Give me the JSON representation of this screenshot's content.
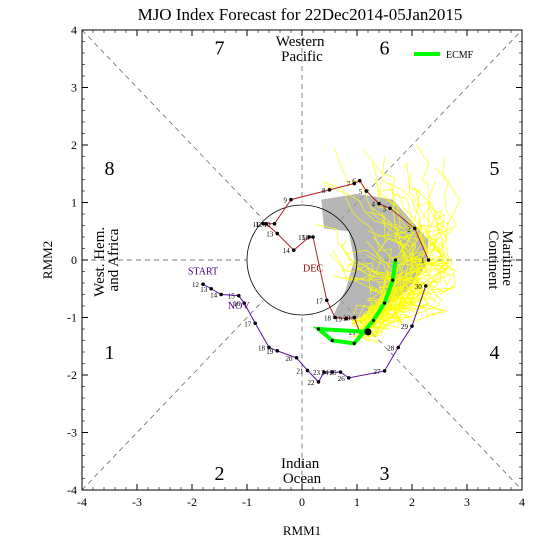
{
  "chart_data": {
    "type": "scatter",
    "title": "MJO Index Forecast for 22Dec2014-05Jan2015",
    "xlabel": "RMM1",
    "ylabel": "RMM2",
    "xlim": [
      -4,
      4
    ],
    "ylim": [
      -4,
      4
    ],
    "x_ticks": [
      "-4",
      "-3",
      "-2",
      "-1",
      "0",
      "1",
      "2",
      "3",
      "4"
    ],
    "y_ticks": [
      "-4",
      "-3",
      "-2",
      "-1",
      "0",
      "1",
      "2",
      "3",
      "4"
    ],
    "phases": [
      {
        "label": "1",
        "x": -3.5,
        "y": -1.6
      },
      {
        "label": "2",
        "x": -1.5,
        "y": -3.7
      },
      {
        "label": "3",
        "x": 1.5,
        "y": -3.7
      },
      {
        "label": "4",
        "x": 3.5,
        "y": -1.6
      },
      {
        "label": "5",
        "x": 3.5,
        "y": 1.6
      },
      {
        "label": "6",
        "x": 1.5,
        "y": 3.7
      },
      {
        "label": "7",
        "x": -1.5,
        "y": 3.7
      },
      {
        "label": "8",
        "x": -3.5,
        "y": 1.6
      }
    ],
    "regions": [
      {
        "lines": [
          "Western",
          "Pacific"
        ]
      },
      {
        "lines": [
          "Indian",
          "Ocean"
        ]
      },
      {
        "lines": [
          "Maritime",
          "Continent"
        ]
      },
      {
        "lines": [
          "West. Hem.",
          "and Africa"
        ]
      }
    ],
    "legend": {
      "label": "ECMF",
      "color": "#00ff00",
      "position": "top-right"
    },
    "month_labels": [
      {
        "label": "START",
        "x": -1.8,
        "y": -0.25,
        "color": "#4b0082"
      },
      {
        "label": "NOV",
        "x": -1.15,
        "y": -0.85,
        "color": "#4b0082"
      },
      {
        "label": "DEC",
        "x": 0.2,
        "y": -0.2,
        "color": "#8b0000"
      }
    ],
    "series": [
      {
        "name": "NOV",
        "color": "#5b0fa0",
        "points": [
          {
            "day": "12",
            "x": -1.8,
            "y": -0.42
          },
          {
            "day": "13",
            "x": -1.65,
            "y": -0.5
          },
          {
            "day": "14",
            "x": -1.47,
            "y": -0.6
          },
          {
            "day": "15",
            "x": -1.15,
            "y": -0.62
          },
          {
            "day": "16",
            "x": -1.05,
            "y": -0.75
          },
          {
            "day": "17",
            "x": -0.85,
            "y": -1.1
          },
          {
            "day": "18",
            "x": -0.6,
            "y": -1.52
          },
          {
            "day": "19",
            "x": -0.45,
            "y": -1.58
          },
          {
            "day": "20",
            "x": -0.1,
            "y": -1.7
          },
          {
            "day": "21",
            "x": 0.1,
            "y": -1.92
          },
          {
            "day": "22",
            "x": 0.3,
            "y": -2.12
          },
          {
            "day": "23",
            "x": 0.4,
            "y": -1.95
          },
          {
            "day": "24",
            "x": 0.55,
            "y": -1.95
          },
          {
            "day": "25",
            "x": 0.7,
            "y": -1.95
          },
          {
            "day": "26",
            "x": 0.85,
            "y": -2.05
          },
          {
            "day": "27",
            "x": 1.5,
            "y": -1.93
          },
          {
            "day": "28",
            "x": 1.75,
            "y": -1.52
          },
          {
            "day": "29",
            "x": 2.0,
            "y": -1.15
          },
          {
            "day": "30",
            "x": 2.25,
            "y": -0.45
          }
        ]
      },
      {
        "name": "DEC",
        "color": "#b22222",
        "points": [
          {
            "day": "1",
            "x": 2.3,
            "y": 0.0
          },
          {
            "day": "2",
            "x": 2.05,
            "y": 0.55
          },
          {
            "day": "3",
            "x": 1.6,
            "y": 0.9
          },
          {
            "day": "4",
            "x": 1.4,
            "y": 0.98
          },
          {
            "day": "5",
            "x": 1.17,
            "y": 1.2
          },
          {
            "day": "6",
            "x": 1.05,
            "y": 1.38
          },
          {
            "day": "7",
            "x": 0.95,
            "y": 1.33
          },
          {
            "day": "8",
            "x": 0.5,
            "y": 1.22
          },
          {
            "day": "9",
            "x": -0.2,
            "y": 1.05
          },
          {
            "day": "10",
            "x": -0.5,
            "y": 0.63
          },
          {
            "day": "11",
            "x": -0.7,
            "y": 0.63
          },
          {
            "day": "12",
            "x": -0.65,
            "y": 0.63
          },
          {
            "day": "13",
            "x": -0.45,
            "y": 0.46
          },
          {
            "day": "14",
            "x": -0.15,
            "y": 0.17
          },
          {
            "day": "15",
            "x": 0.13,
            "y": 0.4
          },
          {
            "day": "16",
            "x": 0.2,
            "y": 0.4
          },
          {
            "day": "17",
            "x": 0.45,
            "y": -0.7
          },
          {
            "day": "18",
            "x": 0.6,
            "y": -1.0
          },
          {
            "day": "19",
            "x": 0.8,
            "y": -1.02
          },
          {
            "day": "20",
            "x": 0.95,
            "y": -1.0
          },
          {
            "day": "21",
            "x": 1.05,
            "y": -1.25
          }
        ]
      },
      {
        "name": "ECMF",
        "color": "#00ff00",
        "points": [
          {
            "x": 1.2,
            "y": -1.25
          },
          {
            "x": 0.3,
            "y": -1.2
          },
          {
            "x": 0.55,
            "y": -1.4
          },
          {
            "x": 0.95,
            "y": -1.45
          },
          {
            "x": 1.3,
            "y": -1.05
          },
          {
            "x": 1.5,
            "y": -0.75
          },
          {
            "x": 1.65,
            "y": -0.35
          },
          {
            "x": 1.7,
            "y": 0.0
          }
        ]
      }
    ],
    "ensemble_color": "#ffff00",
    "spread_shading_color": "#9e9e9e",
    "grid": false
  }
}
